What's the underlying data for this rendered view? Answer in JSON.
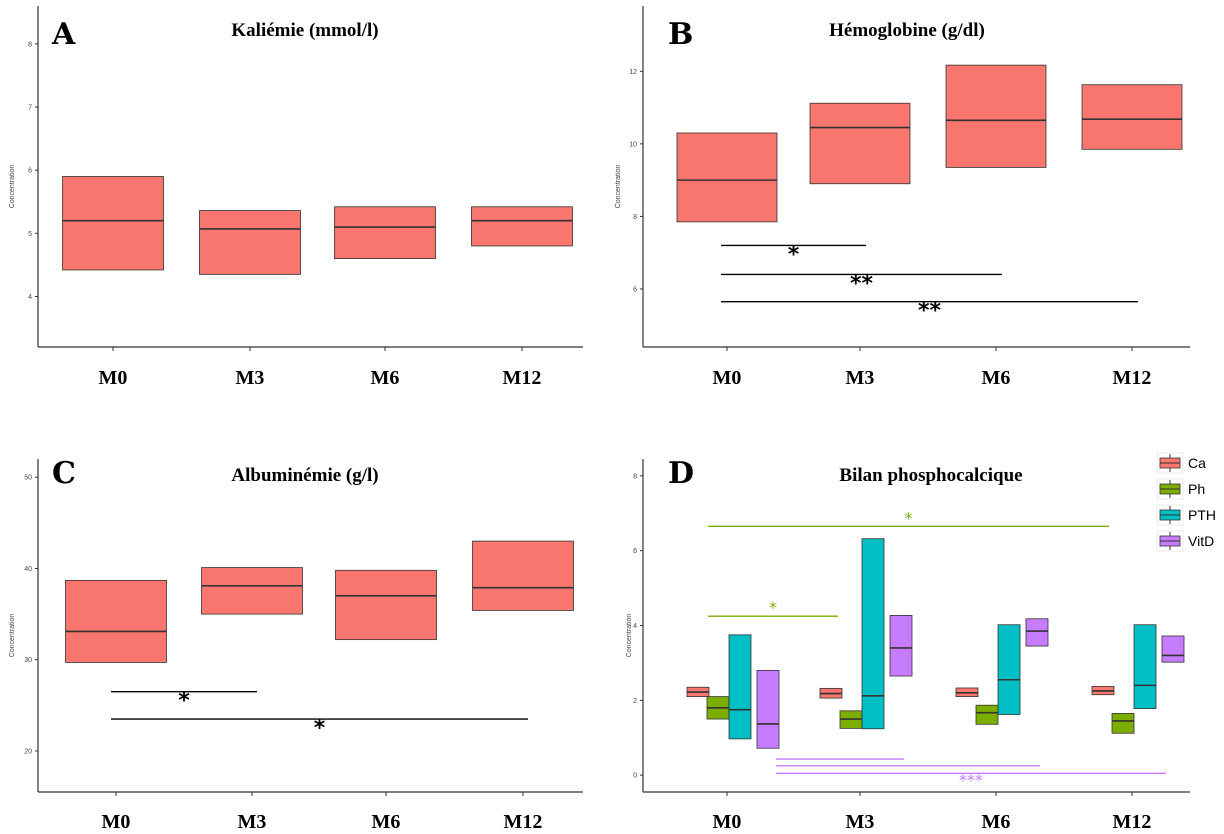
{
  "chart_data": [
    {
      "type": "box",
      "letter": "A",
      "title": "Kaliémie (mmol/l)",
      "ylabel": "Concentration",
      "categories": [
        "M0",
        "M3",
        "M6",
        "M12"
      ],
      "yticks": [
        4,
        5,
        6,
        7,
        8
      ],
      "ylim": [
        3.2,
        8.6
      ],
      "boxes": [
        {
          "x": "M0",
          "low": 4.42,
          "median": 5.2,
          "high": 5.9
        },
        {
          "x": "M3",
          "low": 4.35,
          "median": 5.07,
          "high": 5.36
        },
        {
          "x": "M6",
          "low": 4.6,
          "median": 5.1,
          "high": 5.42
        },
        {
          "x": "M12",
          "low": 4.8,
          "median": 5.2,
          "high": 5.42
        }
      ],
      "significance": []
    },
    {
      "type": "box",
      "letter": "B",
      "title": "Hémoglobine (g/dl)",
      "ylabel": "Concentration",
      "categories": [
        "M0",
        "M3",
        "M6",
        "M12"
      ],
      "yticks": [
        6,
        8,
        10,
        12
      ],
      "ylim": [
        4.4,
        13.8
      ],
      "boxes": [
        {
          "x": "M0",
          "low": 7.85,
          "median": 9.0,
          "high": 10.3
        },
        {
          "x": "M3",
          "low": 8.9,
          "median": 10.45,
          "high": 11.12
        },
        {
          "x": "M6",
          "low": 9.35,
          "median": 10.65,
          "high": 12.17
        },
        {
          "x": "M12",
          "low": 9.85,
          "median": 10.68,
          "high": 11.63
        }
      ],
      "significance": [
        {
          "from": "M0",
          "to": "M3",
          "y": 7.2,
          "label": "*",
          "color": "#000000"
        },
        {
          "from": "M0",
          "to": "M6",
          "y": 6.4,
          "label": "**",
          "color": "#000000"
        },
        {
          "from": "M0",
          "to": "M12",
          "y": 5.65,
          "label": "**",
          "color": "#000000"
        }
      ]
    },
    {
      "type": "box",
      "letter": "C",
      "title": "Albuminémie (g/l)",
      "ylabel": "Concentration",
      "categories": [
        "M0",
        "M3",
        "M6",
        "M12"
      ],
      "yticks": [
        20,
        30,
        40,
        50
      ],
      "ylim": [
        15.5,
        52
      ],
      "boxes": [
        {
          "x": "M0",
          "low": 29.7,
          "median": 33.1,
          "high": 38.7
        },
        {
          "x": "M3",
          "low": 35.0,
          "median": 38.1,
          "high": 40.1
        },
        {
          "x": "M6",
          "low": 32.2,
          "median": 37.0,
          "high": 39.8
        },
        {
          "x": "M12",
          "low": 35.4,
          "median": 37.9,
          "high": 43.0
        }
      ],
      "significance": [
        {
          "from": "M0",
          "to": "M3",
          "y": 26.5,
          "label": "*",
          "color": "#000000"
        },
        {
          "from": "M0",
          "to": "M12",
          "y": 23.5,
          "label": "*",
          "color": "#000000"
        }
      ]
    },
    {
      "type": "box",
      "letter": "D",
      "title": "Bilan phosphocalcique",
      "ylabel": "Concentration",
      "categories": [
        "M0",
        "M3",
        "M6",
        "M12"
      ],
      "yticks": [
        0,
        2,
        4,
        6,
        8
      ],
      "ylim": [
        -0.45,
        8.45
      ],
      "legend": {
        "position": "top-right",
        "entries": [
          "Ca",
          "Ph",
          "PTH",
          "VitD"
        ]
      },
      "series": [
        {
          "name": "Ca",
          "color": "#F8766D",
          "boxes": [
            {
              "x": "M0",
              "low": 2.1,
              "median": 2.22,
              "high": 2.35
            },
            {
              "x": "M3",
              "low": 2.06,
              "median": 2.18,
              "high": 2.32
            },
            {
              "x": "M6",
              "low": 2.1,
              "median": 2.2,
              "high": 2.33
            },
            {
              "x": "M12",
              "low": 2.15,
              "median": 2.25,
              "high": 2.37
            }
          ]
        },
        {
          "name": "Ph",
          "color": "#7CAE00",
          "boxes": [
            {
              "x": "M0",
              "low": 1.5,
              "median": 1.8,
              "high": 2.1
            },
            {
              "x": "M3",
              "low": 1.25,
              "median": 1.5,
              "high": 1.72
            },
            {
              "x": "M6",
              "low": 1.36,
              "median": 1.67,
              "high": 1.87
            },
            {
              "x": "M12",
              "low": 1.12,
              "median": 1.45,
              "high": 1.65
            }
          ]
        },
        {
          "name": "PTH",
          "color": "#00BFC4",
          "boxes": [
            {
              "x": "M0",
              "low": 0.97,
              "median": 1.75,
              "high": 3.75
            },
            {
              "x": "M3",
              "low": 1.24,
              "median": 2.12,
              "high": 6.32
            },
            {
              "x": "M6",
              "low": 1.62,
              "median": 2.55,
              "high": 4.02
            },
            {
              "x": "M12",
              "low": 1.78,
              "median": 2.4,
              "high": 4.02
            }
          ]
        },
        {
          "name": "VitD",
          "color": "#C77CFF",
          "boxes": [
            {
              "x": "M0",
              "low": 0.72,
              "median": 1.37,
              "high": 2.8
            },
            {
              "x": "M3",
              "low": 2.65,
              "median": 3.4,
              "high": 4.27
            },
            {
              "x": "M6",
              "low": 3.45,
              "median": 3.85,
              "high": 4.18
            },
            {
              "x": "M12",
              "low": 3.02,
              "median": 3.2,
              "high": 3.72
            }
          ]
        }
      ],
      "significance": [
        {
          "from": "M0",
          "to": "M12",
          "y": 6.65,
          "label": "*",
          "color": "#7CAE00",
          "series": "Ph"
        },
        {
          "from": "M0",
          "to": "M3",
          "y": 4.25,
          "label": "*",
          "color": "#7CAE00",
          "series": "Ph"
        },
        {
          "from": "M0",
          "to": "M3",
          "y": 0.43,
          "label": "",
          "color": "#C77CFF",
          "series": "VitD"
        },
        {
          "from": "M0",
          "to": "M6",
          "y": 0.25,
          "label": "",
          "color": "#C77CFF",
          "series": "VitD"
        },
        {
          "from": "M0",
          "to": "M12",
          "y": 0.05,
          "label": "***",
          "color": "#C77CFF",
          "series": "VitD"
        }
      ]
    }
  ]
}
